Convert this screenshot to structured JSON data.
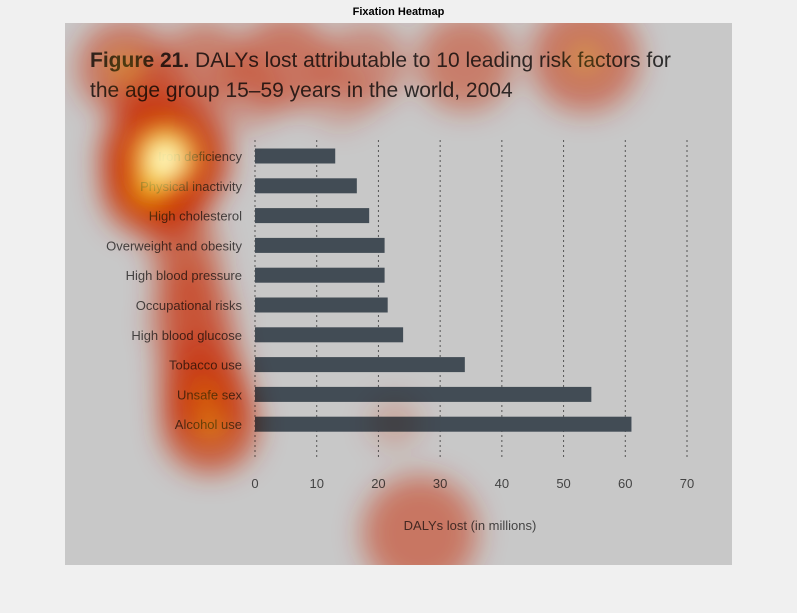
{
  "window": {
    "title": "Fixation Heatmap"
  },
  "figure": {
    "title_bold": "Figure 21.",
    "title_rest": " DALYs lost attributable to 10 leading risk factors for",
    "title_line2": "the age group 15–59 years in the world, 2004"
  },
  "colors": {
    "bar": "#424c55",
    "panel": "#c8c8c8",
    "heat_hot": "#ffffff",
    "heat_warm": "#ffee00",
    "heat_mid": "#ff3300"
  },
  "chart_data": {
    "type": "bar",
    "orientation": "horizontal",
    "title": "Figure 21. DALYs lost attributable to 10 leading risk factors for the age group 15–59 years in the world, 2004",
    "categories": [
      "Iron deficiency",
      "Physical inactivity",
      "High cholesterol",
      "Overweight and obesity",
      "High blood pressure",
      "Occupational risks",
      "High blood glucose",
      "Tobacco use",
      "Unsafe sex",
      "Alcohol use"
    ],
    "values": [
      13,
      16.5,
      18.5,
      21,
      21,
      21.5,
      24,
      34,
      54.5,
      61
    ],
    "xlabel": "DALYs lost (in millions)",
    "ylabel": "",
    "xlim": [
      0,
      70
    ],
    "xticks": [
      "0",
      "10",
      "20",
      "30",
      "40",
      "50",
      "60",
      "70"
    ],
    "grid": "vertical dotted"
  }
}
